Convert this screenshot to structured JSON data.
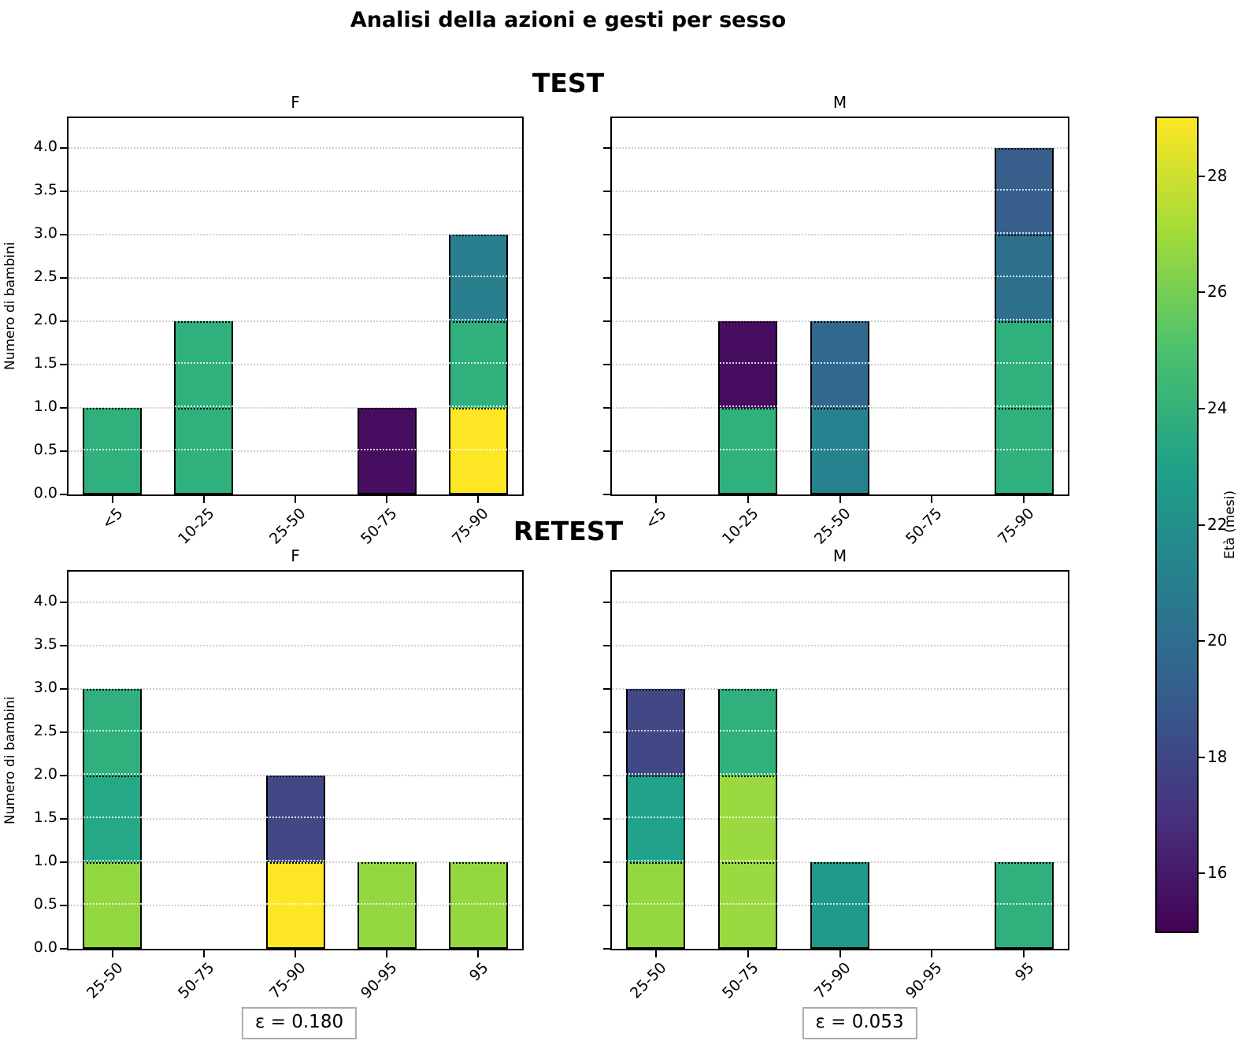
{
  "title": "Analisi della azioni e gesti per sesso",
  "row_titles": [
    "TEST",
    "RETEST"
  ],
  "y_axis": {
    "label": "Numero di bambini",
    "tick_labels": [
      "0.0",
      "0.5",
      "1.0",
      "1.5",
      "2.0",
      "2.5",
      "3.0",
      "3.5",
      "4.0"
    ],
    "max": 4.35
  },
  "colorbar": {
    "label": "Età (mesi)",
    "min": 15,
    "max": 29,
    "ticks": [
      16,
      18,
      20,
      22,
      24,
      26,
      28
    ],
    "colormap": "viridis",
    "gradient": [
      "#440154",
      "#46327e",
      "#365c8d",
      "#277f8e",
      "#1fa187",
      "#4ac16d",
      "#a0da39",
      "#fde725"
    ]
  },
  "chart_data": [
    {
      "id": "test-f",
      "type": "bar",
      "row": "TEST",
      "title": "F",
      "categories": [
        "<5",
        "10-25",
        "25-50",
        "50-75",
        "75-90"
      ],
      "ylabel": "Numero di bambini",
      "ylim": [
        0,
        4.35
      ],
      "grid": "dotted-horizontal",
      "stacks": [
        [
          {
            "count": 1,
            "eta": 24,
            "color": "#2fb07c"
          }
        ],
        [
          {
            "count": 1,
            "eta": 24,
            "color": "#2fb07c"
          },
          {
            "count": 1,
            "eta": 24,
            "color": "#2fb07c"
          }
        ],
        [],
        [
          {
            "count": 1,
            "eta": 15,
            "color": "#470d60"
          }
        ],
        [
          {
            "count": 1,
            "eta": 29,
            "color": "#fde725"
          },
          {
            "count": 1,
            "eta": 24,
            "color": "#2fb07c"
          },
          {
            "count": 1,
            "eta": 21,
            "color": "#2a7f8e"
          }
        ]
      ]
    },
    {
      "id": "test-m",
      "type": "bar",
      "row": "TEST",
      "title": "M",
      "categories": [
        "<5",
        "10-25",
        "25-50",
        "50-75",
        "75-90"
      ],
      "ylim": [
        0,
        4.35
      ],
      "grid": "dotted-horizontal",
      "stacks": [
        [],
        [
          {
            "count": 1,
            "eta": 24,
            "color": "#2fb07c"
          },
          {
            "count": 1,
            "eta": 15,
            "color": "#470d60"
          }
        ],
        [
          {
            "count": 1,
            "eta": 21,
            "color": "#26828e"
          },
          {
            "count": 1,
            "eta": 20,
            "color": "#31688e"
          }
        ],
        [],
        [
          {
            "count": 1,
            "eta": 24,
            "color": "#2fb07c"
          },
          {
            "count": 1,
            "eta": 24,
            "color": "#2fb07c"
          },
          {
            "count": 1,
            "eta": 20,
            "color": "#2d708e"
          },
          {
            "count": 1,
            "eta": 19,
            "color": "#385e8c"
          }
        ]
      ]
    },
    {
      "id": "retest-f",
      "type": "bar",
      "row": "RETEST",
      "title": "F",
      "categories": [
        "25-50",
        "50-75",
        "75-90",
        "90-95",
        "95"
      ],
      "ylabel": "Numero di bambini",
      "ylim": [
        0,
        4.35
      ],
      "grid": "dotted-horizontal",
      "annotation": "ε = 0.180",
      "stacks": [
        [
          {
            "count": 1,
            "eta": 27,
            "color": "#93d741"
          },
          {
            "count": 1,
            "eta": 23,
            "color": "#25a885"
          },
          {
            "count": 1,
            "eta": 24,
            "color": "#2fb07c"
          }
        ],
        [],
        [
          {
            "count": 1,
            "eta": 29,
            "color": "#fde725"
          },
          {
            "count": 1,
            "eta": 18,
            "color": "#414885"
          }
        ],
        [
          {
            "count": 1,
            "eta": 27,
            "color": "#93d741"
          }
        ],
        [
          {
            "count": 1,
            "eta": 27,
            "color": "#93d741"
          }
        ]
      ]
    },
    {
      "id": "retest-m",
      "type": "bar",
      "row": "RETEST",
      "title": "M",
      "categories": [
        "25-50",
        "50-75",
        "75-90",
        "90-95",
        "95"
      ],
      "ylim": [
        0,
        4.35
      ],
      "grid": "dotted-horizontal",
      "annotation": "ε = 0.053",
      "stacks": [
        [
          {
            "count": 1,
            "eta": 27,
            "color": "#93d741"
          },
          {
            "count": 1,
            "eta": 22,
            "color": "#21a38b"
          },
          {
            "count": 1,
            "eta": 18,
            "color": "#414885"
          }
        ],
        [
          {
            "count": 1,
            "eta": 27,
            "color": "#9ad93f"
          },
          {
            "count": 1,
            "eta": 27,
            "color": "#9ad93f"
          },
          {
            "count": 1,
            "eta": 24,
            "color": "#2fb07c"
          }
        ],
        [
          {
            "count": 1,
            "eta": 22,
            "color": "#1f998a"
          }
        ],
        [],
        [
          {
            "count": 1,
            "eta": 24,
            "color": "#2fb07c"
          }
        ]
      ]
    }
  ]
}
